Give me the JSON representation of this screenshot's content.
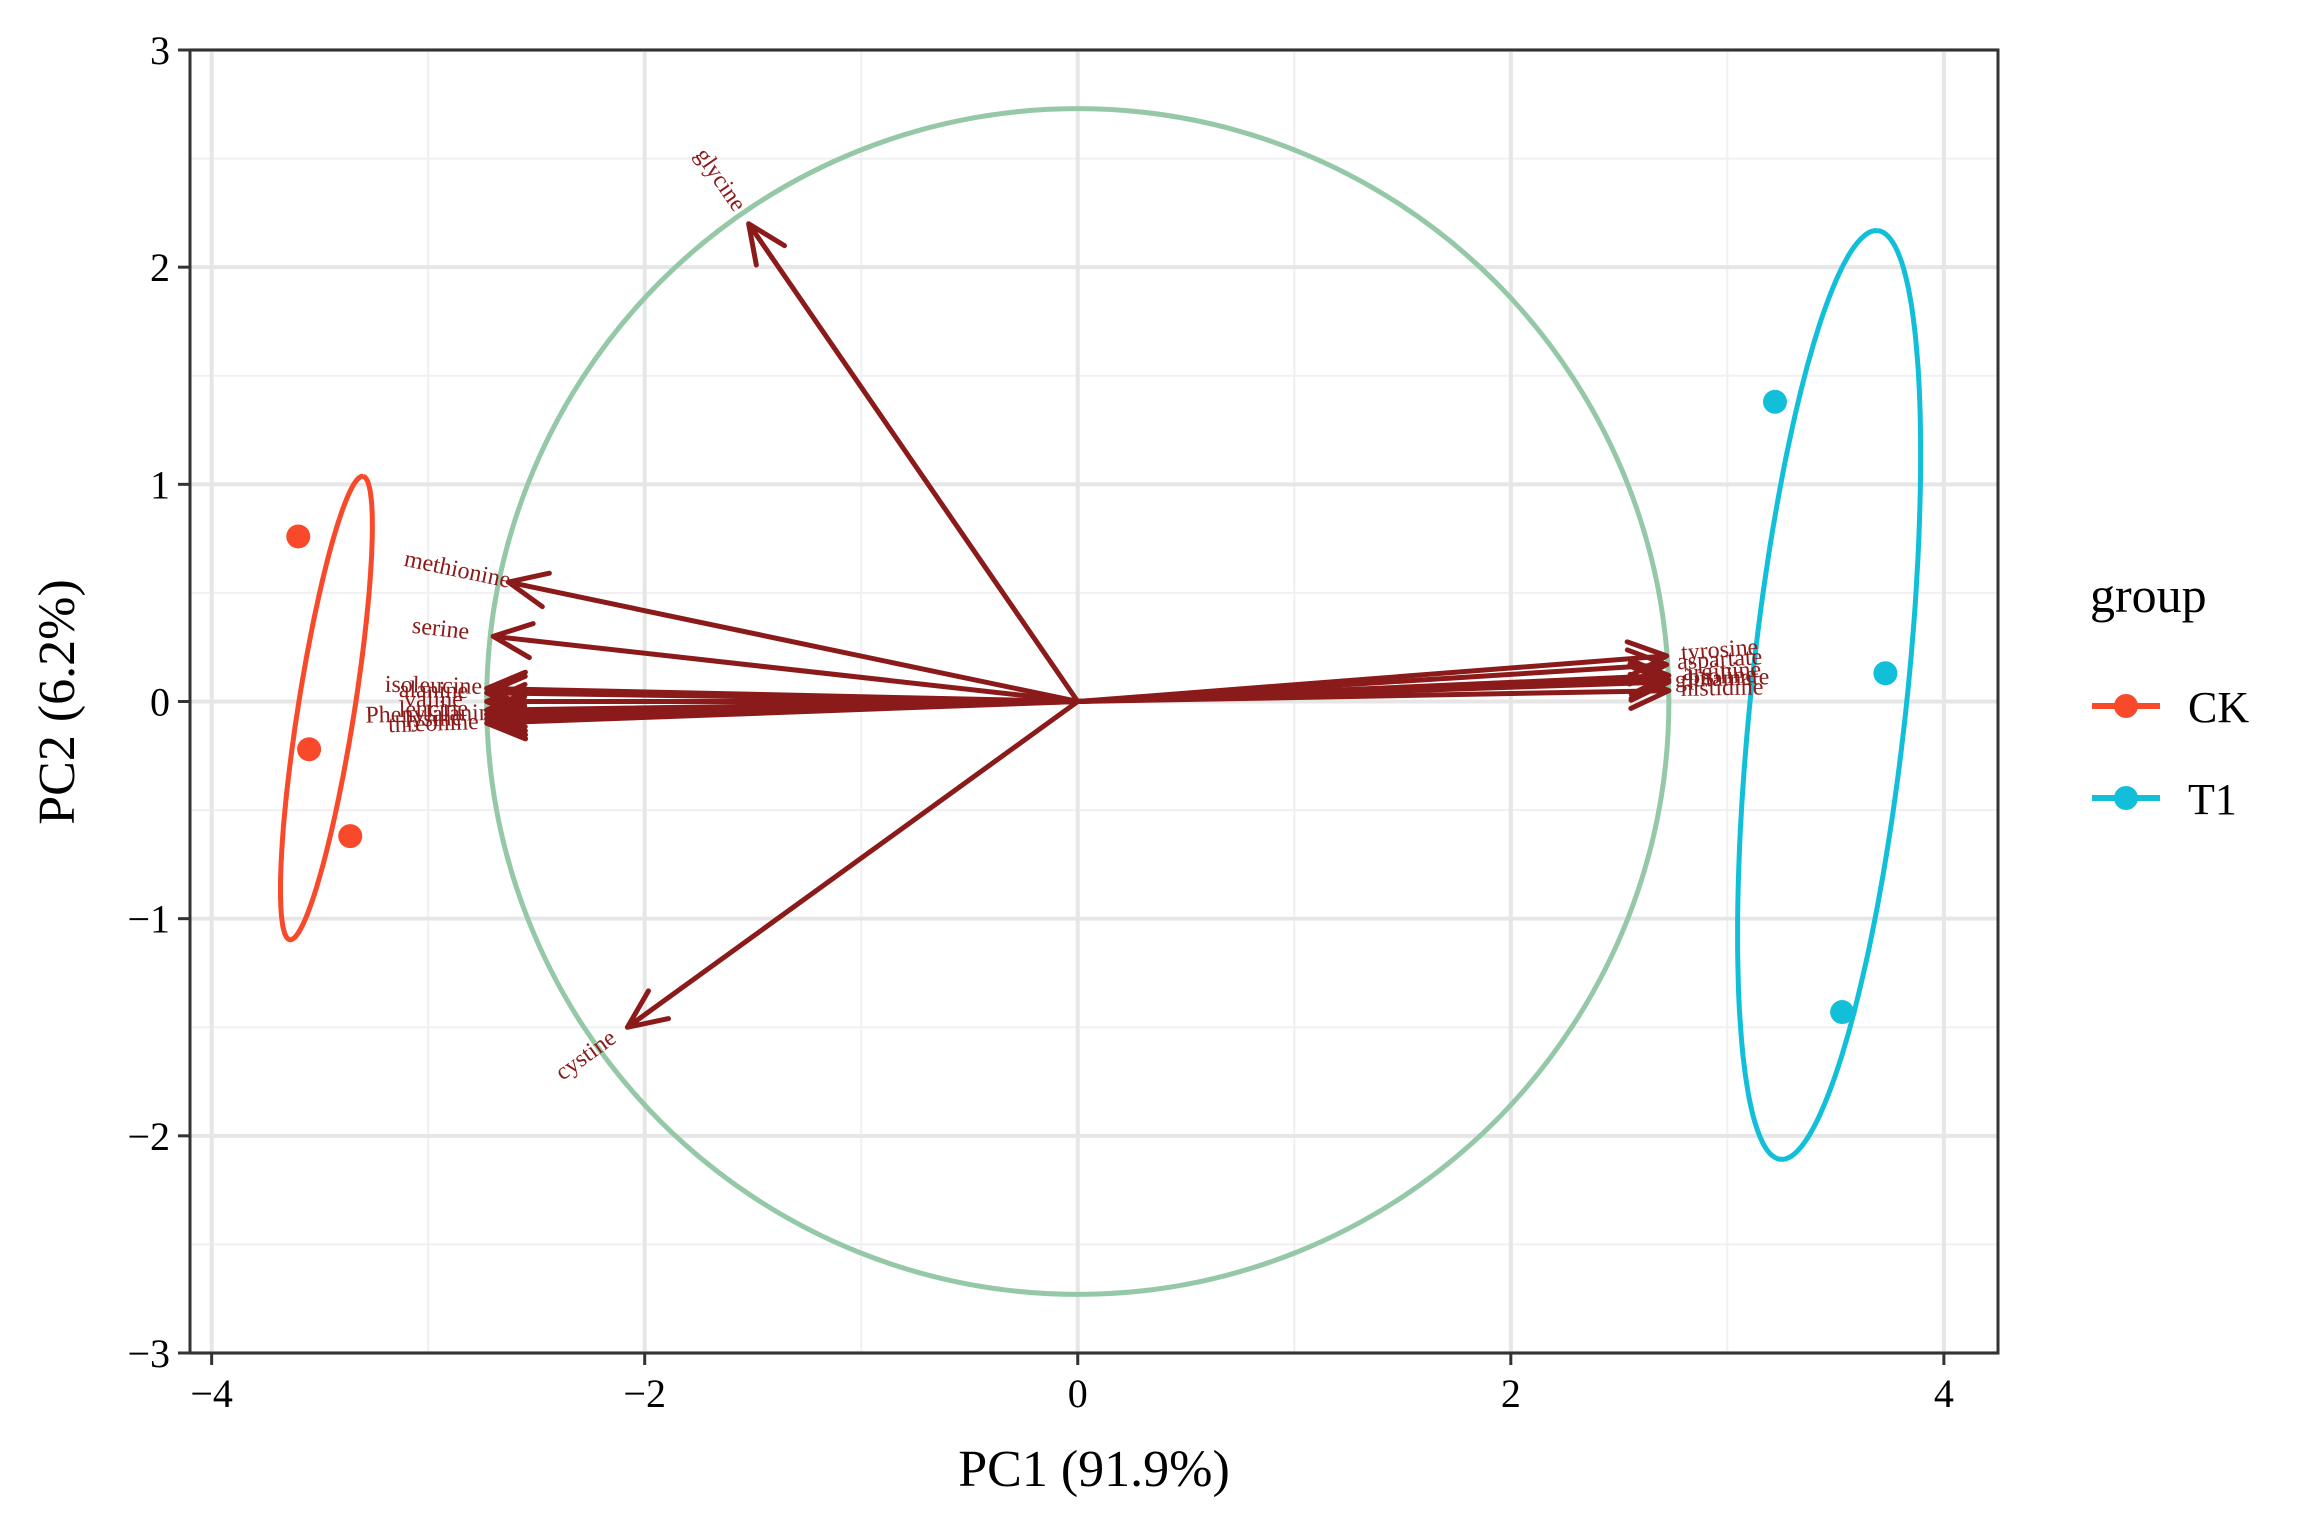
{
  "chart_data": {
    "type": "scatter",
    "xlabel": "PC1 (91.9%)",
    "ylabel": "PC2 (6.2%)",
    "xlim": [
      -4.1,
      4.25
    ],
    "ylim": [
      -3,
      3
    ],
    "x_ticks": [
      -4,
      -2,
      0,
      2,
      4
    ],
    "y_ticks": [
      -3,
      -2,
      -1,
      0,
      1,
      2,
      3
    ],
    "x_tick_labels": [
      "−4",
      "−2",
      "0",
      "2",
      "4"
    ],
    "y_tick_labels": [
      "−3",
      "−2",
      "−1",
      "0",
      "1",
      "2",
      "3"
    ],
    "grid": true,
    "legend": {
      "title": "group",
      "position": "right",
      "entries": [
        {
          "label": "CK",
          "color": "#F8492B"
        },
        {
          "label": "T1",
          "color": "#12BFD9"
        }
      ]
    },
    "series": [
      {
        "name": "CK",
        "color": "#F8492B",
        "points": [
          [
            -3.6,
            0.76
          ],
          [
            -3.55,
            -0.22
          ],
          [
            -3.36,
            -0.62
          ]
        ]
      },
      {
        "name": "T1",
        "color": "#12BFD9",
        "points": [
          [
            3.22,
            1.38
          ],
          [
            3.73,
            0.13
          ],
          [
            3.53,
            -1.43
          ]
        ]
      }
    ],
    "ellipses": [
      {
        "group": "CK",
        "color": "#F8492B",
        "center": [
          -3.47,
          -0.03
        ],
        "semi_major": 1.08,
        "semi_minor": 0.13,
        "tilt_deg": 81
      },
      {
        "group": "T1",
        "color": "#12BFD9",
        "center": [
          3.47,
          0.03
        ],
        "semi_major": 2.15,
        "semi_minor": 0.36,
        "tilt_deg": 84
      }
    ],
    "correlation_circle": {
      "center": [
        0,
        0
      ],
      "radius": 2.73,
      "color": "#95C8A6"
    },
    "loadings": {
      "color": "#8B1A1A",
      "arrows": [
        {
          "label": "glycine",
          "x": -1.52,
          "y": 2.2
        },
        {
          "label": "methionine",
          "x": -2.63,
          "y": 0.55
        },
        {
          "label": "serine",
          "x": -2.7,
          "y": 0.3
        },
        {
          "label": "isoleucine",
          "x": -2.73,
          "y": 0.06
        },
        {
          "label": "alanine",
          "x": -2.73,
          "y": 0.04
        },
        {
          "label": "valine",
          "x": -2.73,
          "y": 0.0
        },
        {
          "label": "leucine",
          "x": -2.73,
          "y": -0.04
        },
        {
          "label": "Phenylalanine",
          "x": -2.73,
          "y": -0.06
        },
        {
          "label": "lysine",
          "x": -2.73,
          "y": -0.08
        },
        {
          "label": "threonine",
          "x": -2.73,
          "y": -0.1
        },
        {
          "label": "cystine",
          "x": -2.08,
          "y": -1.5
        },
        {
          "label": "tyrosine",
          "x": 2.72,
          "y": 0.21
        },
        {
          "label": "aspartate",
          "x": 2.72,
          "y": 0.17
        },
        {
          "label": "arginine",
          "x": 2.73,
          "y": 0.12
        },
        {
          "label": "proline",
          "x": 2.73,
          "y": 0.1
        },
        {
          "label": "glutamate",
          "x": 2.73,
          "y": 0.09
        },
        {
          "label": "histidine",
          "x": 2.73,
          "y": 0.05
        }
      ]
    }
  }
}
